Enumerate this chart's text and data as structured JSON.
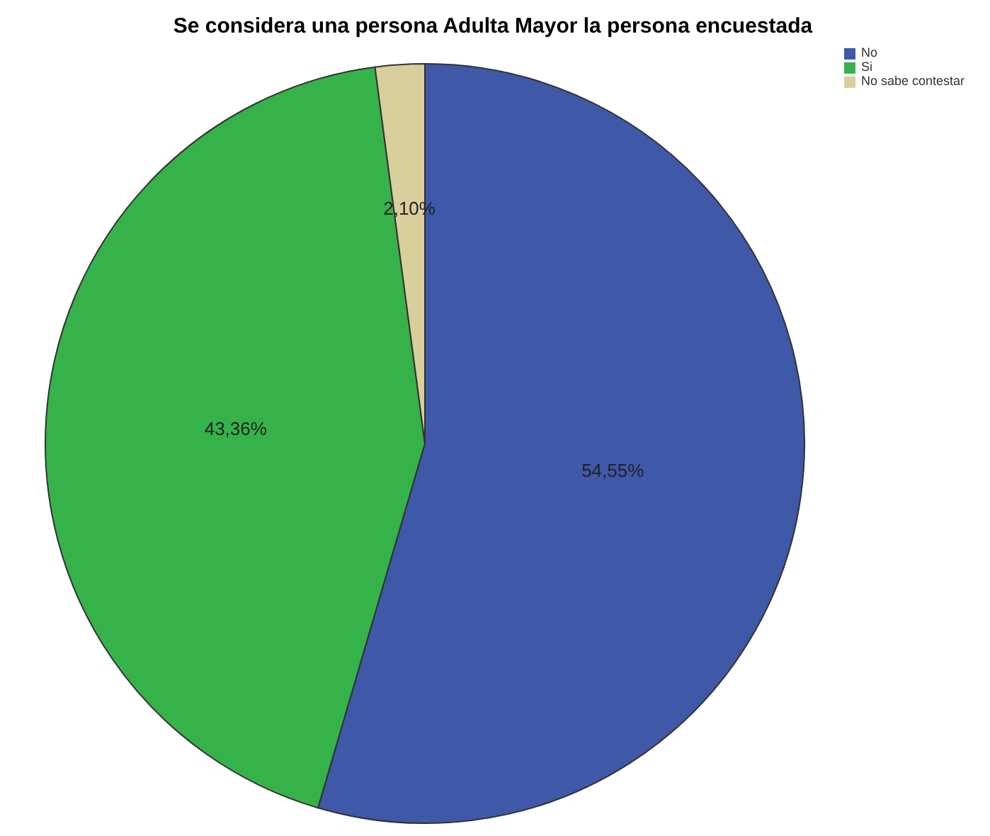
{
  "chart_data": {
    "type": "pie",
    "title": "Se considera una persona Adulta Mayor la persona encuestada",
    "categories": [
      "No",
      "Si",
      "No sabe contestar"
    ],
    "values": [
      54.55,
      43.36,
      2.1
    ],
    "value_labels": [
      "54,55%",
      "43,36%",
      "2,10%"
    ],
    "colors": [
      "#3f58a8",
      "#35b34a",
      "#d8cf9c"
    ],
    "legend": "top right"
  }
}
